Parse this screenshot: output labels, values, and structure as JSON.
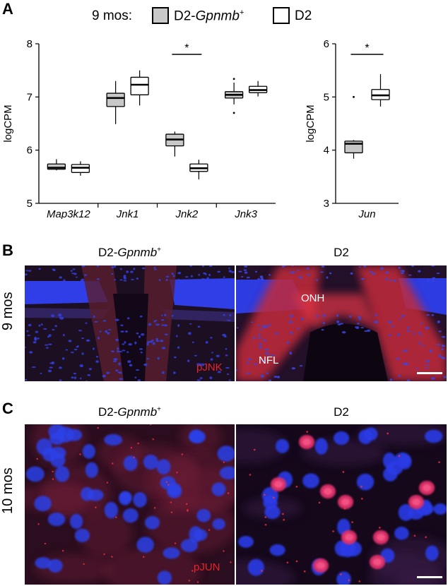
{
  "panels": {
    "a_letter": "A",
    "b_letter": "B",
    "c_letter": "C"
  },
  "legend": {
    "prefix": "9 mos:",
    "gray_label_main": "D2-",
    "gray_label_gene": "Gpnmb",
    "gray_label_sup": "+",
    "white_label": "D2"
  },
  "chart_data": [
    {
      "type": "box",
      "ylabel": "logCPM",
      "ylim": [
        5,
        8
      ],
      "yticks": [
        "5",
        "6",
        "7",
        "8"
      ],
      "categories": [
        "Map3k12",
        "Jnk1",
        "Jnk2",
        "Jnk3"
      ],
      "significance": [
        {
          "category": "Jnk2",
          "label": "*"
        }
      ],
      "series": [
        {
          "name": "D2-Gpnmb+",
          "color": "#c8c8c8",
          "boxes": [
            {
              "min": 5.62,
              "q1": 5.64,
              "median": 5.67,
              "q3": 5.74,
              "max": 5.83,
              "outliers": []
            },
            {
              "min": 6.49,
              "q1": 6.82,
              "median": 6.98,
              "q3": 7.07,
              "max": 7.3,
              "outliers": []
            },
            {
              "min": 5.88,
              "q1": 6.08,
              "median": 6.2,
              "q3": 6.3,
              "max": 6.35,
              "outliers": []
            },
            {
              "min": 6.86,
              "q1": 6.98,
              "median": 7.04,
              "q3": 7.1,
              "max": 7.27,
              "outliers": [
                6.7,
                7.34
              ]
            }
          ]
        },
        {
          "name": "D2",
          "color": "#ffffff",
          "boxes": [
            {
              "min": 5.52,
              "q1": 5.58,
              "median": 5.67,
              "q3": 5.73,
              "max": 5.79,
              "outliers": []
            },
            {
              "min": 6.84,
              "q1": 7.04,
              "median": 7.23,
              "q3": 7.37,
              "max": 7.5,
              "outliers": []
            },
            {
              "min": 5.45,
              "q1": 5.6,
              "median": 5.66,
              "q3": 5.74,
              "max": 5.82,
              "outliers": []
            },
            {
              "min": 7.01,
              "q1": 7.08,
              "median": 7.13,
              "q3": 7.2,
              "max": 7.3,
              "outliers": []
            }
          ]
        }
      ]
    },
    {
      "type": "box",
      "ylabel": "logCPM",
      "ylim": [
        3,
        6
      ],
      "yticks": [
        "3",
        "4",
        "5",
        "6"
      ],
      "categories": [
        "Jun"
      ],
      "significance": [
        {
          "category": "Jun",
          "label": "*"
        }
      ],
      "series": [
        {
          "name": "D2-Gpnmb+",
          "color": "#c8c8c8",
          "boxes": [
            {
              "min": 3.84,
              "q1": 3.95,
              "median": 4.12,
              "q3": 4.17,
              "max": 4.19,
              "outliers": [
                5.0
              ]
            }
          ]
        },
        {
          "name": "D2",
          "color": "#ffffff",
          "boxes": [
            {
              "min": 4.82,
              "q1": 4.95,
              "median": 5.03,
              "q3": 5.14,
              "max": 5.43,
              "outliers": []
            }
          ]
        }
      ]
    }
  ],
  "micrographs": {
    "b": {
      "left_title_main": "D2-",
      "left_title_gene": "Gpnmb",
      "left_title_sup": "+",
      "right_title": "D2",
      "row_label": "9 mos",
      "stain_label": "pJNK",
      "onh_label": "ONH",
      "nfl_label": "NFL"
    },
    "c": {
      "left_title_main": "D2-",
      "left_title_gene": "Gpnmb",
      "left_title_sup": "+",
      "right_title": "D2",
      "row_label": "10 mos",
      "stain_label": "pJUN"
    }
  },
  "colors": {
    "nuclear_blue": "#2a36e8",
    "stain_red": "#e8222a",
    "tissue_dark": "#1a0c20"
  }
}
